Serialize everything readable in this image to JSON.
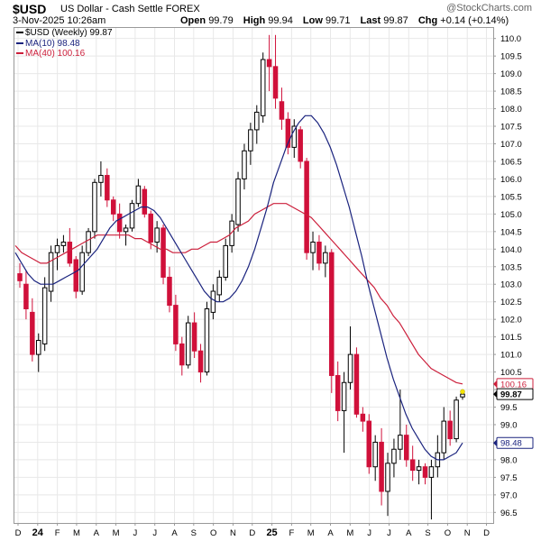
{
  "header": {
    "symbol": "$USD",
    "description": "US Dollar - Cash Settle FOREX",
    "watermark": "@StockCharts.com",
    "date": "3-Nov-2025 10:26am",
    "open_label": "Open",
    "open": "99.79",
    "high_label": "High",
    "high": "99.94",
    "low_label": "Low",
    "low": "99.71",
    "last_label": "Last",
    "last": "99.87",
    "chg_label": "Chg",
    "chg": "+0.14 (+0.14%)"
  },
  "legend": {
    "main": "$USD (Weekly) 99.87",
    "ma10": "MA(10) 98.48",
    "ma40": "MA(40) 100.16"
  },
  "colors": {
    "up": "#000000",
    "down": "#d0103a",
    "ma10": "#1a237e",
    "ma40": "#cc1f3b",
    "grid": "#e8e8e8",
    "last_marker": "#f5e400"
  },
  "chart_data": {
    "type": "candlestick",
    "interval": "weekly",
    "ylim": [
      96.2,
      110.3
    ],
    "y_ticks": [
      "96.5",
      "97.0",
      "97.5",
      "98.0",
      "98.5",
      "99.0",
      "99.5",
      "100.0",
      "100.5",
      "101.0",
      "101.5",
      "102.0",
      "102.5",
      "103.0",
      "103.5",
      "104.0",
      "104.5",
      "105.0",
      "105.5",
      "106.0",
      "106.5",
      "107.0",
      "107.5",
      "108.0",
      "108.5",
      "109.0",
      "109.5",
      "110.0"
    ],
    "x_labels": [
      "D",
      "24",
      "F",
      "M",
      "A",
      "M",
      "J",
      "J",
      "A",
      "S",
      "O",
      "N",
      "D",
      "25",
      "F",
      "M",
      "A",
      "M",
      "J",
      "J",
      "A",
      "S",
      "O",
      "N",
      "D"
    ],
    "x_label_weeks": [
      0,
      4.4,
      8.8,
      13.1,
      17.5,
      21.9,
      26.2,
      30.6,
      35,
      39.3,
      43.7,
      48.1,
      52.4,
      56.8,
      61.2,
      65.5,
      69.9,
      74.3,
      78.6,
      83,
      87.4,
      91.7,
      96.1,
      100.5,
      104.8
    ],
    "price_labels": [
      {
        "label": "100.16",
        "value": 100.16,
        "series": "ma40"
      },
      {
        "label": "99.87",
        "value": 99.87,
        "series": "last"
      },
      {
        "label": "98.48",
        "value": 98.48,
        "series": "ma10"
      }
    ],
    "ohlc": [
      [
        103.3,
        103.6,
        102.9,
        103.1
      ],
      [
        103.0,
        103.4,
        102.0,
        102.3
      ],
      [
        102.2,
        102.6,
        100.8,
        101.0
      ],
      [
        101.0,
        101.6,
        100.5,
        101.4
      ],
      [
        101.3,
        103.2,
        101.1,
        102.9
      ],
      [
        102.8,
        104.1,
        102.5,
        103.9
      ],
      [
        103.9,
        104.3,
        103.4,
        104.1
      ],
      [
        104.1,
        104.4,
        103.9,
        104.2
      ],
      [
        104.2,
        104.6,
        103.5,
        103.6
      ],
      [
        103.7,
        103.8,
        102.6,
        102.8
      ],
      [
        102.8,
        104.1,
        102.7,
        103.9
      ],
      [
        103.9,
        104.6,
        103.8,
        104.5
      ],
      [
        104.5,
        106.0,
        104.3,
        105.9
      ],
      [
        105.9,
        106.5,
        105.5,
        106.1
      ],
      [
        106.1,
        106.3,
        105.2,
        105.4
      ],
      [
        105.4,
        105.5,
        104.8,
        105.0
      ],
      [
        105.0,
        105.3,
        104.3,
        104.5
      ],
      [
        104.5,
        104.7,
        104.1,
        104.6
      ],
      [
        104.6,
        105.4,
        104.5,
        105.3
      ],
      [
        105.3,
        106.0,
        105.2,
        105.8
      ],
      [
        105.7,
        105.8,
        104.9,
        105.0
      ],
      [
        105.0,
        105.1,
        104.0,
        104.2
      ],
      [
        104.2,
        104.8,
        103.9,
        104.6
      ],
      [
        104.6,
        104.7,
        103.0,
        103.2
      ],
      [
        103.2,
        103.5,
        102.2,
        102.4
      ],
      [
        102.4,
        102.7,
        101.1,
        101.3
      ],
      [
        101.3,
        101.5,
        100.4,
        100.7
      ],
      [
        100.7,
        102.1,
        100.6,
        101.9
      ],
      [
        101.9,
        102.2,
        100.9,
        101.1
      ],
      [
        101.1,
        101.3,
        100.2,
        100.5
      ],
      [
        100.5,
        102.5,
        100.4,
        102.3
      ],
      [
        102.2,
        103.0,
        102.0,
        102.8
      ],
      [
        102.7,
        103.4,
        102.5,
        103.2
      ],
      [
        103.2,
        104.3,
        103.1,
        104.1
      ],
      [
        104.1,
        105.0,
        103.9,
        104.8
      ],
      [
        104.7,
        106.2,
        104.5,
        106.0
      ],
      [
        106.0,
        107.0,
        105.7,
        106.8
      ],
      [
        106.8,
        107.6,
        106.4,
        107.4
      ],
      [
        107.4,
        108.1,
        107.0,
        107.9
      ],
      [
        107.8,
        109.6,
        107.6,
        109.4
      ],
      [
        109.4,
        110.1,
        108.5,
        109.2
      ],
      [
        109.2,
        110.1,
        108.0,
        108.3
      ],
      [
        108.2,
        108.6,
        107.4,
        107.7
      ],
      [
        107.7,
        107.9,
        106.7,
        106.9
      ],
      [
        106.9,
        107.7,
        106.6,
        107.5
      ],
      [
        107.4,
        107.5,
        106.3,
        106.5
      ],
      [
        106.5,
        106.6,
        103.7,
        103.9
      ],
      [
        103.9,
        104.5,
        103.4,
        104.2
      ],
      [
        104.2,
        104.4,
        103.4,
        103.6
      ],
      [
        103.6,
        104.1,
        103.2,
        103.9
      ],
      [
        103.9,
        104.0,
        99.9,
        100.4
      ],
      [
        100.4,
        100.8,
        99.1,
        99.4
      ],
      [
        99.4,
        100.5,
        98.2,
        100.2
      ],
      [
        100.2,
        101.8,
        100.0,
        101.0
      ],
      [
        101.0,
        101.2,
        99.2,
        99.3
      ],
      [
        99.3,
        99.5,
        98.8,
        99.1
      ],
      [
        99.1,
        99.3,
        97.6,
        97.8
      ],
      [
        97.8,
        98.7,
        97.4,
        98.5
      ],
      [
        98.5,
        98.9,
        96.7,
        97.1
      ],
      [
        97.1,
        98.2,
        96.4,
        97.9
      ],
      [
        97.9,
        98.6,
        97.5,
        98.3
      ],
      [
        98.3,
        100.0,
        98.0,
        98.7
      ],
      [
        98.7,
        99.0,
        97.8,
        98.0
      ],
      [
        98.0,
        98.4,
        97.4,
        97.7
      ],
      [
        97.7,
        98.0,
        97.3,
        97.8
      ],
      [
        97.8,
        97.9,
        97.3,
        97.5
      ],
      [
        97.5,
        98.0,
        96.3,
        97.8
      ],
      [
        97.8,
        98.7,
        97.5,
        98.2
      ],
      [
        98.2,
        99.5,
        98.0,
        99.1
      ],
      [
        99.1,
        99.4,
        98.4,
        98.6
      ],
      [
        98.6,
        99.8,
        98.5,
        99.7
      ],
      [
        99.79,
        99.94,
        99.71,
        99.87
      ]
    ],
    "ma10": [
      103.9,
      103.6,
      103.3,
      103.1,
      103.0,
      103.0,
      103.0,
      103.1,
      103.2,
      103.3,
      103.4,
      103.6,
      103.8,
      104.0,
      104.3,
      104.6,
      104.8,
      104.9,
      105.0,
      105.1,
      105.2,
      105.2,
      105.1,
      104.9,
      104.6,
      104.3,
      104.0,
      103.7,
      103.4,
      103.1,
      102.8,
      102.6,
      102.5,
      102.5,
      102.6,
      102.8,
      103.1,
      103.5,
      104.0,
      104.6,
      105.2,
      105.9,
      106.4,
      106.9,
      107.3,
      107.6,
      107.8,
      107.8,
      107.6,
      107.3,
      106.9,
      106.4,
      105.8,
      105.2,
      104.5,
      103.8,
      103.0,
      102.3,
      101.6,
      100.9,
      100.3,
      99.8,
      99.3,
      98.9,
      98.6,
      98.3,
      98.1,
      98.0,
      98.0,
      98.1,
      98.2,
      98.48
    ],
    "ma40": [
      104.1,
      103.9,
      103.8,
      103.7,
      103.6,
      103.6,
      103.7,
      103.8,
      103.9,
      104.0,
      104.1,
      104.2,
      104.3,
      104.4,
      104.4,
      104.4,
      104.4,
      104.4,
      104.4,
      104.3,
      104.3,
      104.2,
      104.1,
      104.0,
      104.0,
      103.9,
      103.9,
      103.9,
      104.0,
      104.0,
      104.1,
      104.2,
      104.2,
      104.3,
      104.4,
      104.6,
      104.7,
      104.8,
      105.0,
      105.1,
      105.2,
      105.3,
      105.3,
      105.3,
      105.2,
      105.1,
      105.0,
      104.9,
      104.7,
      104.5,
      104.3,
      104.1,
      103.9,
      103.7,
      103.5,
      103.3,
      103.1,
      102.9,
      102.6,
      102.4,
      102.1,
      101.9,
      101.6,
      101.3,
      101.0,
      100.8,
      100.6,
      100.5,
      100.4,
      100.3,
      100.2,
      100.16
    ]
  }
}
